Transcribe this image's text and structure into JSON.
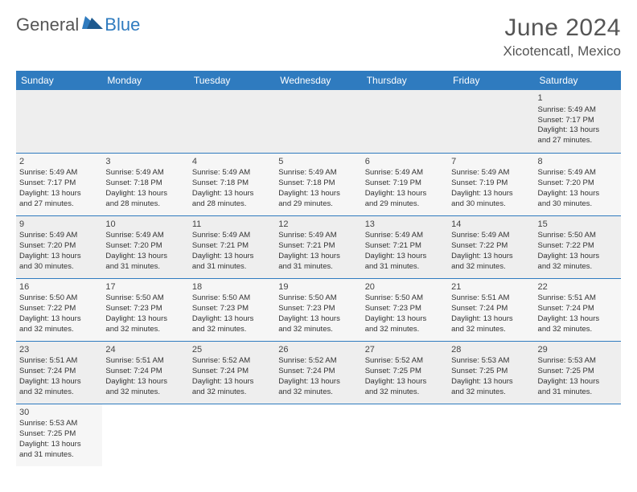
{
  "brand": {
    "part1": "General",
    "part2": "Blue",
    "tri_color": "#2f7bbf"
  },
  "title": "June 2024",
  "location": "Xicotencatl, Mexico",
  "colors": {
    "header_bg": "#2f7bbf",
    "header_text": "#ffffff",
    "row_border": "#2f7bbf",
    "alt_row_a": "#eeeeee",
    "alt_row_b": "#f6f6f6",
    "text": "#333333"
  },
  "weekdays": [
    "Sunday",
    "Monday",
    "Tuesday",
    "Wednesday",
    "Thursday",
    "Friday",
    "Saturday"
  ],
  "grid": [
    [
      null,
      null,
      null,
      null,
      null,
      null,
      {
        "n": "1",
        "sr": "Sunrise: 5:49 AM",
        "ss": "Sunset: 7:17 PM",
        "d1": "Daylight: 13 hours",
        "d2": "and 27 minutes."
      }
    ],
    [
      {
        "n": "2",
        "sr": "Sunrise: 5:49 AM",
        "ss": "Sunset: 7:17 PM",
        "d1": "Daylight: 13 hours",
        "d2": "and 27 minutes."
      },
      {
        "n": "3",
        "sr": "Sunrise: 5:49 AM",
        "ss": "Sunset: 7:18 PM",
        "d1": "Daylight: 13 hours",
        "d2": "and 28 minutes."
      },
      {
        "n": "4",
        "sr": "Sunrise: 5:49 AM",
        "ss": "Sunset: 7:18 PM",
        "d1": "Daylight: 13 hours",
        "d2": "and 28 minutes."
      },
      {
        "n": "5",
        "sr": "Sunrise: 5:49 AM",
        "ss": "Sunset: 7:18 PM",
        "d1": "Daylight: 13 hours",
        "d2": "and 29 minutes."
      },
      {
        "n": "6",
        "sr": "Sunrise: 5:49 AM",
        "ss": "Sunset: 7:19 PM",
        "d1": "Daylight: 13 hours",
        "d2": "and 29 minutes."
      },
      {
        "n": "7",
        "sr": "Sunrise: 5:49 AM",
        "ss": "Sunset: 7:19 PM",
        "d1": "Daylight: 13 hours",
        "d2": "and 30 minutes."
      },
      {
        "n": "8",
        "sr": "Sunrise: 5:49 AM",
        "ss": "Sunset: 7:20 PM",
        "d1": "Daylight: 13 hours",
        "d2": "and 30 minutes."
      }
    ],
    [
      {
        "n": "9",
        "sr": "Sunrise: 5:49 AM",
        "ss": "Sunset: 7:20 PM",
        "d1": "Daylight: 13 hours",
        "d2": "and 30 minutes."
      },
      {
        "n": "10",
        "sr": "Sunrise: 5:49 AM",
        "ss": "Sunset: 7:20 PM",
        "d1": "Daylight: 13 hours",
        "d2": "and 31 minutes."
      },
      {
        "n": "11",
        "sr": "Sunrise: 5:49 AM",
        "ss": "Sunset: 7:21 PM",
        "d1": "Daylight: 13 hours",
        "d2": "and 31 minutes."
      },
      {
        "n": "12",
        "sr": "Sunrise: 5:49 AM",
        "ss": "Sunset: 7:21 PM",
        "d1": "Daylight: 13 hours",
        "d2": "and 31 minutes."
      },
      {
        "n": "13",
        "sr": "Sunrise: 5:49 AM",
        "ss": "Sunset: 7:21 PM",
        "d1": "Daylight: 13 hours",
        "d2": "and 31 minutes."
      },
      {
        "n": "14",
        "sr": "Sunrise: 5:49 AM",
        "ss": "Sunset: 7:22 PM",
        "d1": "Daylight: 13 hours",
        "d2": "and 32 minutes."
      },
      {
        "n": "15",
        "sr": "Sunrise: 5:50 AM",
        "ss": "Sunset: 7:22 PM",
        "d1": "Daylight: 13 hours",
        "d2": "and 32 minutes."
      }
    ],
    [
      {
        "n": "16",
        "sr": "Sunrise: 5:50 AM",
        "ss": "Sunset: 7:22 PM",
        "d1": "Daylight: 13 hours",
        "d2": "and 32 minutes."
      },
      {
        "n": "17",
        "sr": "Sunrise: 5:50 AM",
        "ss": "Sunset: 7:23 PM",
        "d1": "Daylight: 13 hours",
        "d2": "and 32 minutes."
      },
      {
        "n": "18",
        "sr": "Sunrise: 5:50 AM",
        "ss": "Sunset: 7:23 PM",
        "d1": "Daylight: 13 hours",
        "d2": "and 32 minutes."
      },
      {
        "n": "19",
        "sr": "Sunrise: 5:50 AM",
        "ss": "Sunset: 7:23 PM",
        "d1": "Daylight: 13 hours",
        "d2": "and 32 minutes."
      },
      {
        "n": "20",
        "sr": "Sunrise: 5:50 AM",
        "ss": "Sunset: 7:23 PM",
        "d1": "Daylight: 13 hours",
        "d2": "and 32 minutes."
      },
      {
        "n": "21",
        "sr": "Sunrise: 5:51 AM",
        "ss": "Sunset: 7:24 PM",
        "d1": "Daylight: 13 hours",
        "d2": "and 32 minutes."
      },
      {
        "n": "22",
        "sr": "Sunrise: 5:51 AM",
        "ss": "Sunset: 7:24 PM",
        "d1": "Daylight: 13 hours",
        "d2": "and 32 minutes."
      }
    ],
    [
      {
        "n": "23",
        "sr": "Sunrise: 5:51 AM",
        "ss": "Sunset: 7:24 PM",
        "d1": "Daylight: 13 hours",
        "d2": "and 32 minutes."
      },
      {
        "n": "24",
        "sr": "Sunrise: 5:51 AM",
        "ss": "Sunset: 7:24 PM",
        "d1": "Daylight: 13 hours",
        "d2": "and 32 minutes."
      },
      {
        "n": "25",
        "sr": "Sunrise: 5:52 AM",
        "ss": "Sunset: 7:24 PM",
        "d1": "Daylight: 13 hours",
        "d2": "and 32 minutes."
      },
      {
        "n": "26",
        "sr": "Sunrise: 5:52 AM",
        "ss": "Sunset: 7:24 PM",
        "d1": "Daylight: 13 hours",
        "d2": "and 32 minutes."
      },
      {
        "n": "27",
        "sr": "Sunrise: 5:52 AM",
        "ss": "Sunset: 7:25 PM",
        "d1": "Daylight: 13 hours",
        "d2": "and 32 minutes."
      },
      {
        "n": "28",
        "sr": "Sunrise: 5:53 AM",
        "ss": "Sunset: 7:25 PM",
        "d1": "Daylight: 13 hours",
        "d2": "and 32 minutes."
      },
      {
        "n": "29",
        "sr": "Sunrise: 5:53 AM",
        "ss": "Sunset: 7:25 PM",
        "d1": "Daylight: 13 hours",
        "d2": "and 31 minutes."
      }
    ],
    [
      {
        "n": "30",
        "sr": "Sunrise: 5:53 AM",
        "ss": "Sunset: 7:25 PM",
        "d1": "Daylight: 13 hours",
        "d2": "and 31 minutes."
      },
      null,
      null,
      null,
      null,
      null,
      null
    ]
  ]
}
